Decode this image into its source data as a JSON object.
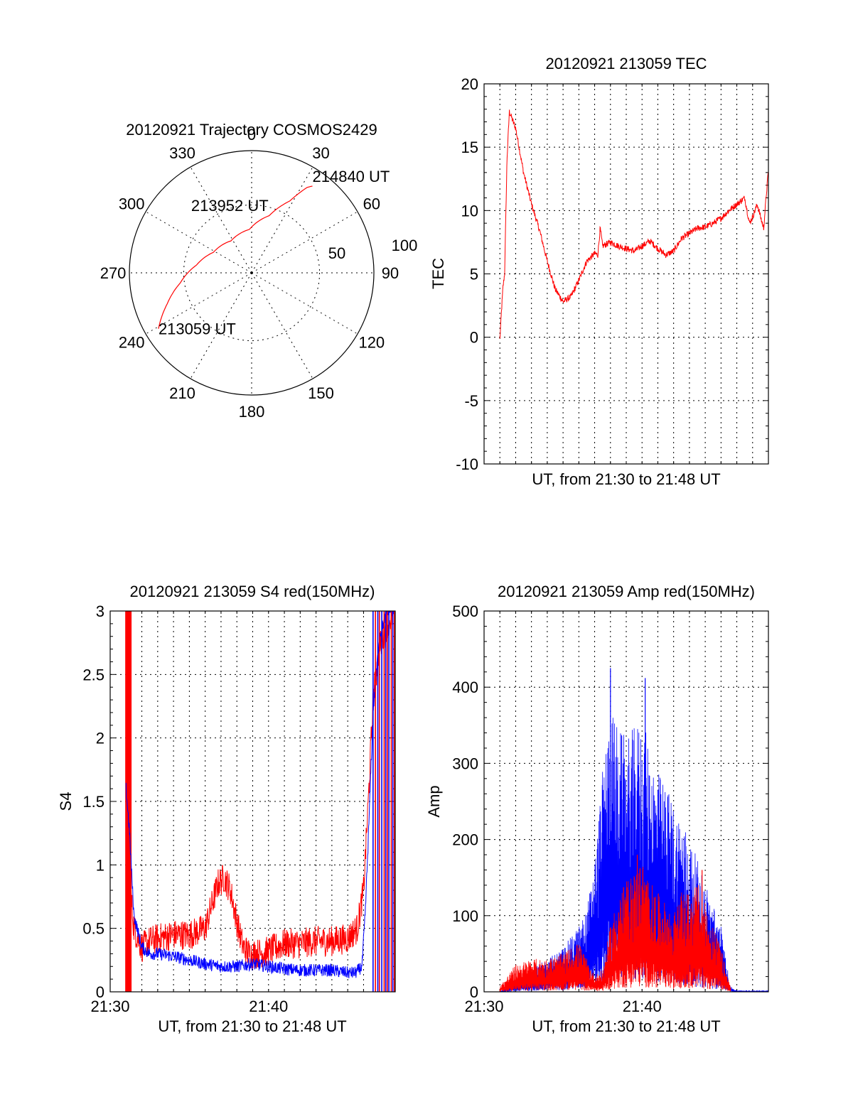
{
  "chart_data": [
    {
      "type": "polar",
      "title": "20120921 Trajectory COSMOS2429",
      "azimuth_labels": [
        "0",
        "30",
        "60",
        "90",
        "120",
        "150",
        "180",
        "210",
        "240",
        "270",
        "300",
        "330"
      ],
      "radius_labels": [
        "50",
        "100"
      ],
      "grid": true,
      "series": [
        {
          "color": "#ff0000",
          "points": [
            {
              "az": 239,
              "zen": 80
            },
            {
              "az": 250,
              "zen": 66
            },
            {
              "az": 262,
              "zen": 53
            },
            {
              "az": 278,
              "zen": 41
            },
            {
              "az": 298,
              "zen": 32
            },
            {
              "az": 327,
              "zen": 28
            },
            {
              "az": 357,
              "zen": 32
            },
            {
              "az": 17,
              "zen": 44
            },
            {
              "az": 28,
              "zen": 60
            },
            {
              "az": 33,
              "zen": 75
            },
            {
              "az": 35,
              "zen": 78
            }
          ]
        }
      ],
      "annotations": [
        {
          "text": "213059 UT",
          "az": 239,
          "zen": 80
        },
        {
          "text": "213952 UT",
          "az": 327,
          "zen": 28
        },
        {
          "text": "214840 UT",
          "az": 35,
          "zen": 78
        }
      ]
    },
    {
      "type": "line",
      "title": "20120921 213059 TEC",
      "xlabel": "UT, from 21:30 to 21:48 UT",
      "ylabel": "TEC",
      "xlim": [
        0,
        18
      ],
      "ylim": [
        -10,
        20
      ],
      "yticks": [
        "-10",
        "-5",
        "0",
        "5",
        "10",
        "15",
        "20"
      ],
      "grid": true,
      "series": [
        {
          "color": "#ff0000",
          "noise": 0.25,
          "x": [
            1.0,
            1.1,
            1.2,
            1.3,
            1.45,
            1.6,
            2.0,
            2.5,
            3.0,
            3.5,
            4.0,
            4.5,
            5.0,
            5.5,
            6.0,
            6.5,
            7.0,
            7.2,
            7.35,
            7.5,
            8.0,
            8.5,
            9.0,
            9.5,
            10.0,
            10.5,
            11.0,
            11.5,
            12.0,
            12.5,
            13.0,
            13.5,
            14.0,
            14.5,
            15.0,
            15.5,
            16.0,
            16.5,
            16.8,
            17.0,
            17.3,
            17.5,
            17.7,
            17.85,
            18.0
          ],
          "y": [
            -0.2,
            2.0,
            4.0,
            5.0,
            14.0,
            17.8,
            16.5,
            13.0,
            10.5,
            8.5,
            6.0,
            3.8,
            2.8,
            3.2,
            4.5,
            6.0,
            6.6,
            6.5,
            8.6,
            7.2,
            7.5,
            7.2,
            7.0,
            6.8,
            7.2,
            7.6,
            7.0,
            6.5,
            6.8,
            7.8,
            8.2,
            8.6,
            8.7,
            9.0,
            9.4,
            10.0,
            10.5,
            11.0,
            9.0,
            9.5,
            10.5,
            9.5,
            8.6,
            11.0,
            13.2
          ]
        }
      ]
    },
    {
      "type": "line",
      "title": "20120921 213059 S4 red(150MHz)",
      "xlabel": "UT, from 21:30 to 21:48 UT",
      "ylabel": "S4",
      "xlim": [
        0,
        18
      ],
      "ylim": [
        0,
        3
      ],
      "yticks": [
        "0",
        "0.5",
        "1",
        "1.5",
        "2",
        "2.5",
        "3"
      ],
      "xticks": [
        "21:30",
        "21:40"
      ],
      "grid": true,
      "series": [
        {
          "color": "#ff0000",
          "noise": 0.12,
          "x": [
            1.2,
            1.5,
            2.0,
            2.5,
            3.0,
            4.0,
            5.0,
            6.0,
            6.8,
            7.2,
            7.6,
            8.0,
            8.4,
            8.8,
            9.2,
            10.0,
            11.0,
            12.0,
            13.0,
            14.0,
            15.0,
            15.6,
            16.0,
            16.3,
            16.6,
            17.0,
            17.5,
            18.0
          ],
          "y": [
            0.9,
            0.5,
            0.35,
            0.4,
            0.42,
            0.45,
            0.45,
            0.5,
            0.85,
            0.9,
            0.8,
            0.55,
            0.35,
            0.3,
            0.3,
            0.32,
            0.38,
            0.38,
            0.4,
            0.4,
            0.42,
            0.5,
            0.8,
            1.5,
            2.3,
            2.7,
            2.9,
            3.0
          ]
        },
        {
          "color": "#0000ff",
          "noise": 0.05,
          "x": [
            1.0,
            1.2,
            1.5,
            2.0,
            2.5,
            3.0,
            4.0,
            5.0,
            6.0,
            7.0,
            8.0,
            9.0,
            10.0,
            11.0,
            12.0,
            13.0,
            14.0,
            15.0,
            15.5,
            15.9,
            16.1,
            16.3,
            16.6,
            17.0,
            17.5,
            18.0
          ],
          "y": [
            1.6,
            1.3,
            0.6,
            0.35,
            0.3,
            0.3,
            0.28,
            0.25,
            0.22,
            0.2,
            0.2,
            0.22,
            0.2,
            0.18,
            0.17,
            0.17,
            0.17,
            0.15,
            0.15,
            0.2,
            0.6,
            1.2,
            2.2,
            2.8,
            3.0,
            3.0
          ]
        }
      ],
      "bands": [
        {
          "color": "#ff0000",
          "x0": 0.95,
          "x1": 1.35
        }
      ],
      "spikes": [
        {
          "color": "#0000ff",
          "x": [
            16.6,
            16.9,
            17.15,
            17.4,
            17.6,
            17.85
          ]
        },
        {
          "color": "#ff0000",
          "x": [
            16.75,
            17.0,
            17.3,
            17.5,
            17.75,
            17.95
          ]
        }
      ]
    },
    {
      "type": "line",
      "title": "20120921 213059 Amp red(150MHz)",
      "xlabel": "UT, from 21:30 to 21:48 UT",
      "ylabel": "Amp",
      "xlim": [
        0,
        18
      ],
      "ylim": [
        0,
        500
      ],
      "yticks": [
        "0",
        "100",
        "200",
        "300",
        "400",
        "500"
      ],
      "xticks": [
        "21:30",
        "21:40"
      ],
      "grid": true,
      "series": [
        {
          "color": "#0000ff",
          "fill": true,
          "x": [
            0,
            1.0,
            2.0,
            3.0,
            4.0,
            5.0,
            6.0,
            6.5,
            7.0,
            7.5,
            8.0,
            8.5,
            9.0,
            9.5,
            10.0,
            10.5,
            11.0,
            11.5,
            12.0,
            12.5,
            13.0,
            13.5,
            14.0,
            14.5,
            15.0,
            15.3,
            15.6,
            16.0,
            18.0
          ],
          "y": [
            0,
            0,
            10,
            20,
            30,
            40,
            60,
            75,
            120,
            200,
            260,
            240,
            230,
            240,
            250,
            220,
            200,
            190,
            170,
            160,
            140,
            120,
            100,
            80,
            60,
            30,
            5,
            1,
            1
          ]
        },
        {
          "color": "#ff0000",
          "fill": true,
          "x": [
            1.0,
            2.0,
            3.0,
            4.0,
            5.0,
            6.0,
            6.5,
            7.0,
            7.5,
            8.0,
            8.5,
            9.0,
            9.5,
            10.0,
            10.5,
            11.0,
            11.5,
            12.0,
            12.5,
            13.0,
            13.5,
            14.0,
            14.5,
            15.0,
            15.3,
            15.6
          ],
          "y": [
            5,
            25,
            30,
            30,
            35,
            45,
            30,
            15,
            20,
            60,
            90,
            100,
            110,
            120,
            100,
            90,
            80,
            70,
            90,
            90,
            100,
            80,
            60,
            40,
            20,
            5
          ]
        }
      ],
      "peaks": [
        {
          "color": "#0000ff",
          "x": 8.0,
          "y": 425
        },
        {
          "color": "#0000ff",
          "x": 10.2,
          "y": 412
        },
        {
          "color": "#ff0000",
          "x": 9.7,
          "y": 180
        },
        {
          "color": "#ff0000",
          "x": 13.8,
          "y": 160
        }
      ]
    }
  ]
}
